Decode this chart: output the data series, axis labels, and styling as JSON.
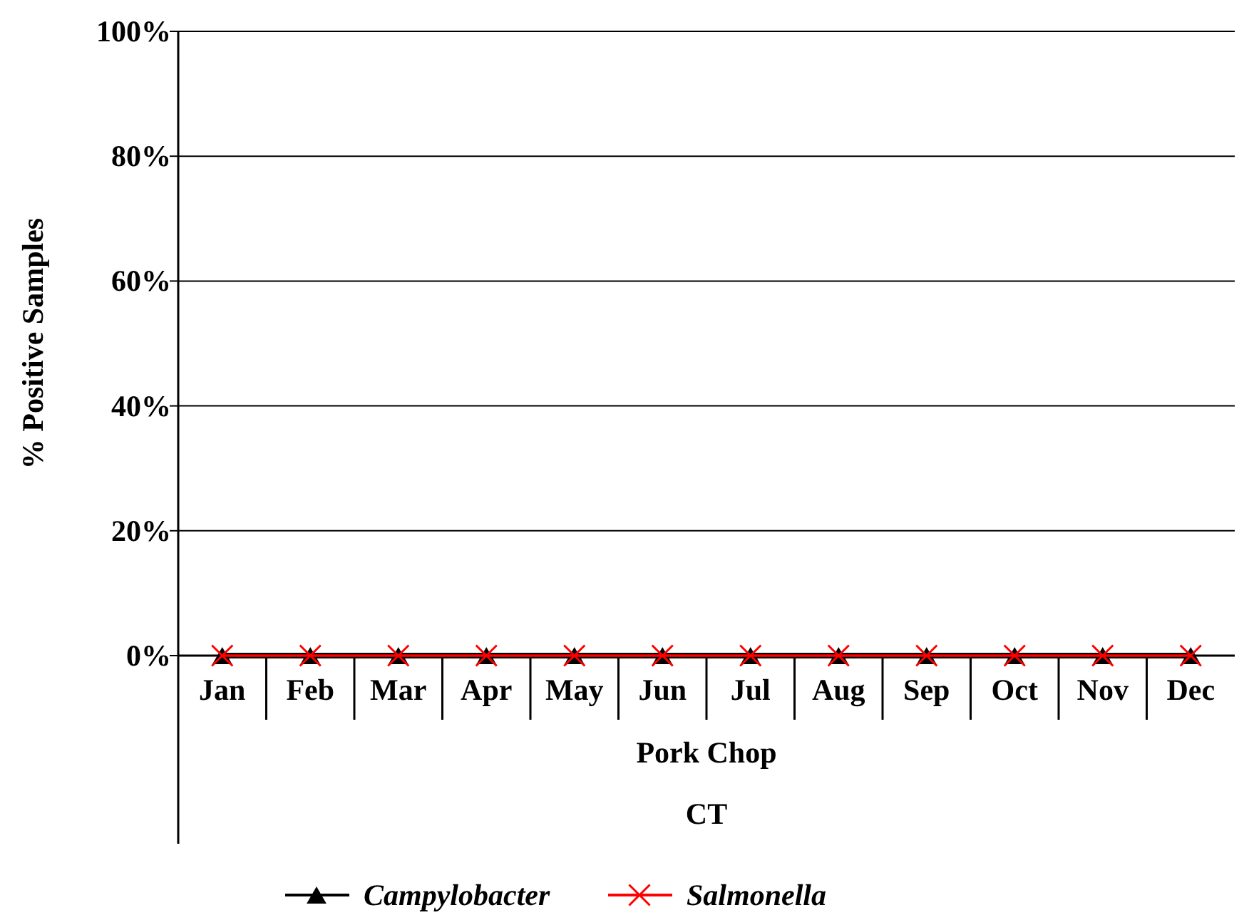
{
  "chart_data": {
    "type": "line",
    "categories": [
      "Jan",
      "Feb",
      "Mar",
      "Apr",
      "May",
      "Jun",
      "Jul",
      "Aug",
      "Sep",
      "Oct",
      "Nov",
      "Dec"
    ],
    "xlabel": "Pork Chop",
    "ylabel": "% Positive Samples",
    "annotations": [
      "CT"
    ],
    "ylim": [
      0,
      100
    ],
    "yticks": [
      {
        "value": 0,
        "label": "0%"
      },
      {
        "value": 20,
        "label": "20%"
      },
      {
        "value": 40,
        "label": "40%"
      },
      {
        "value": 60,
        "label": "60%"
      },
      {
        "value": 80,
        "label": "80%"
      },
      {
        "value": 100,
        "label": "100%"
      }
    ],
    "grid": "y",
    "legend": "bottom",
    "series": [
      {
        "name": "Campylobacter",
        "color": "#000000",
        "marker": "triangle",
        "values": [
          0,
          0,
          0,
          0,
          0,
          0,
          0,
          0,
          0,
          0,
          0,
          0
        ]
      },
      {
        "name": "Salmonella",
        "color": "#ff0000",
        "marker": "cross",
        "values": [
          0,
          0,
          0,
          0,
          0,
          0,
          0,
          0,
          0,
          0,
          0,
          0
        ]
      }
    ]
  }
}
